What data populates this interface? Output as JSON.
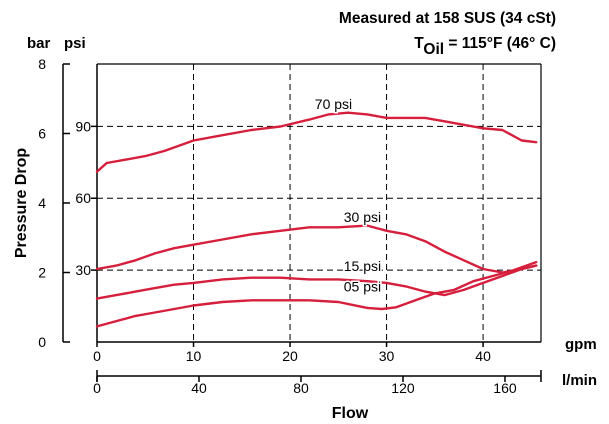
{
  "header": {
    "line1": "Measured at 158 SUS  (34 cSt)",
    "line2_prefix": "T",
    "line2_sub": "Oil",
    "line2_rest": " = 115°F  (46° C)"
  },
  "colors": {
    "curve": "#d61f3c",
    "axis": "#000000",
    "grid": "#000000"
  },
  "chart_data": {
    "type": "line",
    "xlabel": "Flow",
    "ylabel": "Pressure Drop",
    "x_unit_primary": "gpm",
    "x_unit_secondary": "l/min",
    "y_unit_primary": "bar",
    "y_unit_secondary": "psi",
    "xlim": [
      0,
      46
    ],
    "ylim": [
      0,
      8
    ],
    "x_ticks_gpm": [
      "0",
      "10",
      "20",
      "30",
      "40"
    ],
    "x_ticks_lmin": [
      "0",
      "40",
      "80",
      "120",
      "160"
    ],
    "x_ticks_lmin_values": [
      0,
      40,
      80,
      120,
      160
    ],
    "y_ticks_bar": [
      "0",
      "2",
      "4",
      "6",
      "8"
    ],
    "y_ticks_psi": [
      "30",
      "60",
      "90"
    ],
    "y_ticks_psi_values": [
      30,
      60,
      90
    ],
    "grid": true,
    "series": [
      {
        "name": "70 psi",
        "x": [
          0,
          1,
          3,
          5,
          7,
          10,
          13,
          16,
          19,
          22,
          24,
          26,
          28,
          30,
          32,
          34,
          36,
          38,
          40,
          42,
          44,
          45.5
        ],
        "y": [
          4.9,
          5.15,
          5.25,
          5.35,
          5.5,
          5.8,
          5.95,
          6.1,
          6.2,
          6.4,
          6.55,
          6.6,
          6.55,
          6.45,
          6.45,
          6.45,
          6.35,
          6.25,
          6.15,
          6.1,
          5.8,
          5.75
        ]
      },
      {
        "name": "30 psi",
        "x": [
          0,
          2,
          4,
          6,
          8,
          10,
          13,
          16,
          19,
          22,
          25,
          28,
          30,
          32,
          34,
          36,
          38,
          40,
          42,
          44,
          45.5
        ],
        "y": [
          2.1,
          2.2,
          2.35,
          2.55,
          2.7,
          2.8,
          2.95,
          3.1,
          3.2,
          3.3,
          3.3,
          3.35,
          3.2,
          3.1,
          2.9,
          2.6,
          2.35,
          2.1,
          2.0,
          2.1,
          2.2
        ]
      },
      {
        "name": "15 psi",
        "x": [
          0,
          2,
          4,
          6,
          8,
          10,
          13,
          16,
          19,
          22,
          25,
          28,
          30,
          32,
          34,
          36,
          38,
          40,
          42,
          44,
          45.5
        ],
        "y": [
          1.25,
          1.35,
          1.45,
          1.55,
          1.65,
          1.7,
          1.8,
          1.85,
          1.85,
          1.8,
          1.8,
          1.75,
          1.7,
          1.6,
          1.45,
          1.35,
          1.5,
          1.7,
          1.9,
          2.1,
          2.2
        ]
      },
      {
        "name": "05 psi",
        "x": [
          0,
          2,
          4,
          6,
          8,
          10,
          13,
          16,
          19,
          22,
          25,
          28,
          29.5,
          31,
          33,
          35,
          37,
          39,
          41,
          43,
          45.5
        ],
        "y": [
          0.45,
          0.6,
          0.75,
          0.85,
          0.95,
          1.05,
          1.15,
          1.2,
          1.2,
          1.2,
          1.15,
          0.98,
          0.95,
          1.0,
          1.2,
          1.4,
          1.5,
          1.75,
          1.9,
          2.05,
          2.3
        ]
      }
    ],
    "curve_label_positions_data": [
      {
        "series": "70 psi",
        "x": 24.5,
        "y": 6.7
      },
      {
        "series": "30 psi",
        "x": 27.5,
        "y": 3.45
      },
      {
        "series": "15 psi",
        "x": 27.5,
        "y": 2.05
      },
      {
        "series": "05 psi",
        "x": 27.5,
        "y": 1.45
      }
    ]
  }
}
